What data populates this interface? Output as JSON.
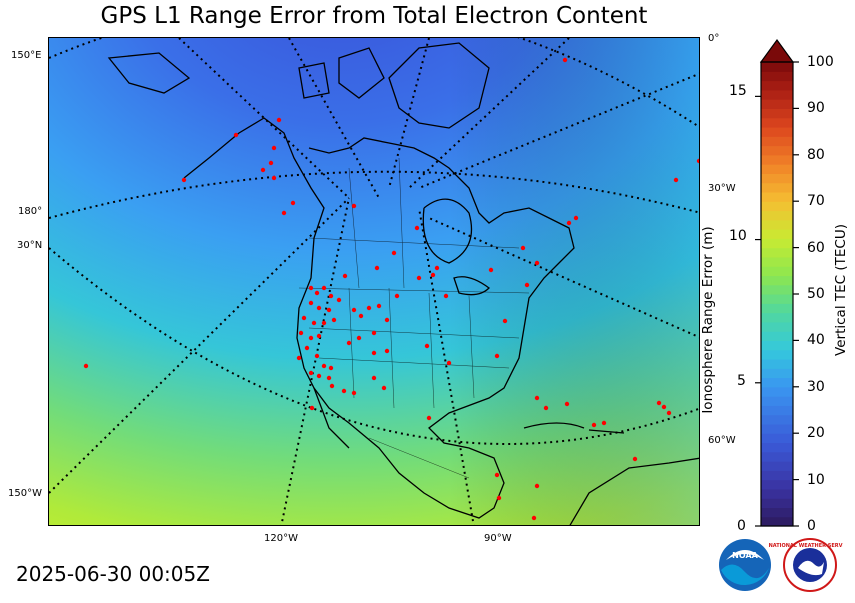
{
  "title": "GPS L1 Range Error from Total Electron Content",
  "timestamp": "2025-06-30 00:05Z",
  "map": {
    "lon_labels_bottom": [
      "120°W",
      "90°W"
    ],
    "lat_labels_left": [
      "150°E",
      "180°",
      "30°N",
      "150°W"
    ],
    "lon_labels_right": [
      "0°",
      "30°W",
      "60°W"
    ]
  },
  "colorbar": {
    "left_label": "Ionosphere Range Error (m)",
    "right_label": "Vertical TEC (TECU)",
    "left_ticks": [
      "0",
      "5",
      "10",
      "15"
    ],
    "right_ticks": [
      "0",
      "10",
      "20",
      "30",
      "40",
      "50",
      "60",
      "70",
      "80",
      "90",
      "100"
    ],
    "tec_range": [
      0,
      100
    ],
    "range_error_m_range": [
      0,
      16.2
    ],
    "colormap": "jet-like (dark purple → blue → cyan → green → yellow → orange → red → dark red)"
  },
  "colors": {
    "tec_low": "#2c1a5c",
    "tec_mid": "#3aa6f0",
    "tec_green": "#7fe04a",
    "tec_high": "#7a0a0a",
    "station_marker": "#ff0000"
  },
  "logos": {
    "noaa": "NOAA",
    "nws": "NATIONAL WEATHER SERVICE"
  }
}
